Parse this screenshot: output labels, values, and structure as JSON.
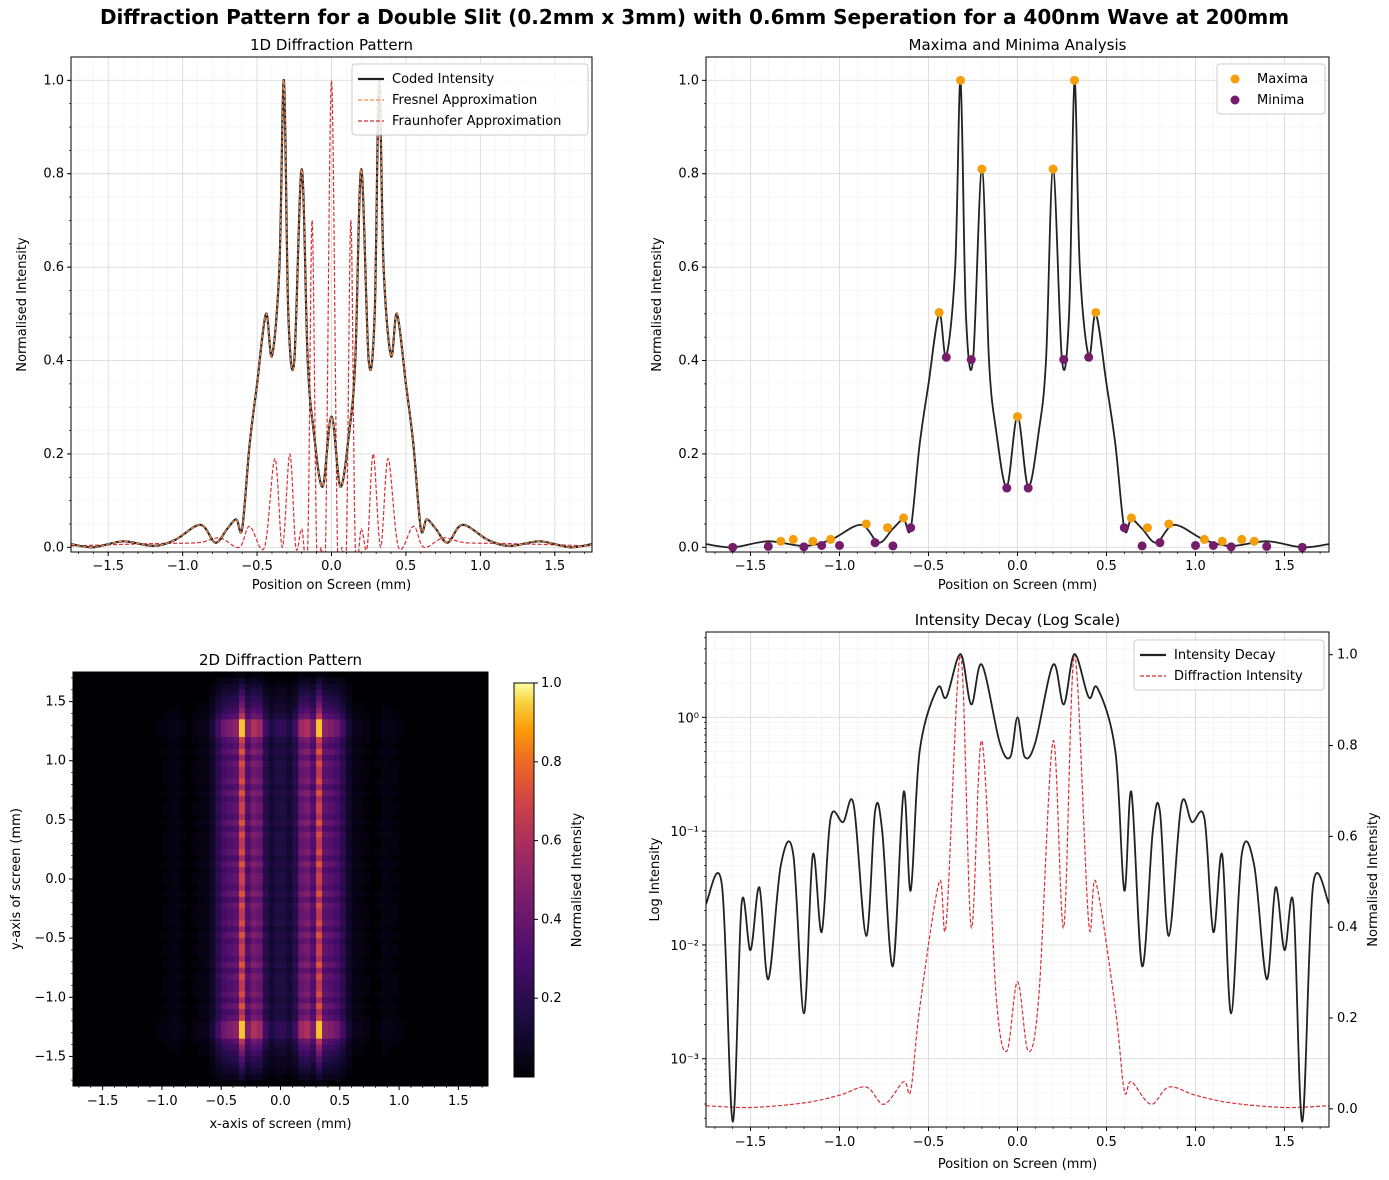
{
  "figure": {
    "title": "Diffraction Pattern for a Double Slit (0.2mm x 3mm) with 0.6mm Seperation for a 400nm Wave at 200mm"
  },
  "chart_data": [
    {
      "type": "line",
      "title": "1D Diffraction Pattern",
      "xlabel": "Position on Screen (mm)",
      "ylabel": "Normalised Intensity",
      "xlim": [
        -1.75,
        1.75
      ],
      "ylim": [
        -0.01,
        1.05
      ],
      "xticks": [
        "−1.5",
        "−1.0",
        "−0.5",
        "0.0",
        "0.5",
        "1.0",
        "1.5"
      ],
      "yticks": [
        "0.0",
        "0.2",
        "0.4",
        "0.6",
        "0.8",
        "1.0"
      ],
      "grid": true,
      "legend_position": "top-right",
      "series": [
        {
          "name": "Coded Intensity",
          "color": "#222222",
          "style": "solid",
          "x": [
            -1.75,
            -1.6,
            -1.4,
            -1.2,
            -1.05,
            -0.88,
            -0.78,
            -0.7,
            -0.64,
            -0.6,
            -0.55,
            -0.5,
            -0.44,
            -0.4,
            -0.35,
            -0.32,
            -0.29,
            -0.25,
            -0.2,
            -0.16,
            -0.12,
            -0.06,
            0.0,
            0.06,
            0.12,
            0.16,
            0.2,
            0.25,
            0.29,
            0.32,
            0.35,
            0.4,
            0.44,
            0.5,
            0.55,
            0.6,
            0.64,
            0.7,
            0.78,
            0.88,
            1.05,
            1.2,
            1.4,
            1.6,
            1.75
          ],
          "y": [
            0.007,
            0.0,
            0.013,
            0.003,
            0.016,
            0.048,
            0.01,
            0.04,
            0.06,
            0.04,
            0.22,
            0.35,
            0.5,
            0.41,
            0.6,
            1.0,
            0.5,
            0.4,
            0.81,
            0.4,
            0.25,
            0.13,
            0.28,
            0.13,
            0.25,
            0.4,
            0.81,
            0.4,
            0.5,
            1.0,
            0.6,
            0.41,
            0.5,
            0.35,
            0.22,
            0.04,
            0.06,
            0.04,
            0.01,
            0.048,
            0.016,
            0.003,
            0.013,
            0.0,
            0.007
          ]
        },
        {
          "name": "Fresnel Approximation",
          "color": "#f4894b",
          "style": "dashed",
          "x": [
            -1.75,
            -1.6,
            -1.4,
            -1.2,
            -1.05,
            -0.88,
            -0.78,
            -0.7,
            -0.64,
            -0.6,
            -0.55,
            -0.5,
            -0.44,
            -0.4,
            -0.35,
            -0.32,
            -0.29,
            -0.25,
            -0.2,
            -0.16,
            -0.12,
            -0.06,
            0.0,
            0.06,
            0.12,
            0.16,
            0.2,
            0.25,
            0.29,
            0.32,
            0.35,
            0.4,
            0.44,
            0.5,
            0.55,
            0.6,
            0.64,
            0.7,
            0.78,
            0.88,
            1.05,
            1.2,
            1.4,
            1.6,
            1.75
          ],
          "y": [
            0.007,
            0.0,
            0.013,
            0.003,
            0.016,
            0.048,
            0.01,
            0.04,
            0.06,
            0.04,
            0.22,
            0.35,
            0.5,
            0.41,
            0.6,
            1.0,
            0.5,
            0.4,
            0.81,
            0.4,
            0.25,
            0.13,
            0.28,
            0.13,
            0.25,
            0.4,
            0.81,
            0.4,
            0.5,
            1.0,
            0.6,
            0.41,
            0.5,
            0.35,
            0.22,
            0.04,
            0.06,
            0.04,
            0.01,
            0.048,
            0.016,
            0.003,
            0.013,
            0.0,
            0.007
          ]
        },
        {
          "name": "Fraunhofer Approximation",
          "color": "#d62f36",
          "style": "dashed",
          "x": [
            -1.75,
            -1.2,
            -0.9,
            -0.75,
            -0.62,
            -0.55,
            -0.45,
            -0.38,
            -0.33,
            -0.28,
            -0.24,
            -0.2,
            -0.16,
            -0.13,
            -0.1,
            -0.07,
            -0.04,
            0.0,
            0.04,
            0.07,
            0.1,
            0.13,
            0.16,
            0.2,
            0.24,
            0.28,
            0.33,
            0.38,
            0.45,
            0.55,
            0.62,
            0.75,
            0.9,
            1.2,
            1.75
          ],
          "y": [
            0.003,
            0.008,
            0.01,
            0.02,
            0.0,
            0.045,
            0.0,
            0.19,
            0.0,
            0.2,
            0.0,
            0.04,
            0.0,
            0.7,
            0.0,
            0.0,
            0.0,
            1.0,
            0.0,
            0.0,
            0.0,
            0.7,
            0.0,
            0.04,
            0.0,
            0.2,
            0.0,
            0.19,
            0.0,
            0.045,
            0.0,
            0.02,
            0.01,
            0.008,
            0.003
          ]
        }
      ]
    },
    {
      "type": "line",
      "title": "Maxima and Minima Analysis",
      "xlabel": "Position on Screen (mm)",
      "ylabel": "Normalised Intensity",
      "xlim": [
        -1.75,
        1.75
      ],
      "ylim": [
        -0.01,
        1.05
      ],
      "xticks": [
        "−1.5",
        "−1.0",
        "−0.5",
        "0.0",
        "0.5",
        "1.0",
        "1.5"
      ],
      "yticks": [
        "0.0",
        "0.2",
        "0.4",
        "0.6",
        "0.8",
        "1.0"
      ],
      "grid": true,
      "legend_position": "top-right",
      "series": [
        {
          "name": "Maxima",
          "color": "#f59e0b",
          "x": [
            -1.33,
            -1.26,
            -1.15,
            -1.05,
            -0.85,
            -0.73,
            -0.64,
            -0.44,
            -0.32,
            -0.2,
            0.0,
            0.2,
            0.32,
            0.44,
            0.64,
            0.73,
            0.85,
            1.05,
            1.15,
            1.26,
            1.33
          ],
          "y": [
            0.013,
            0.017,
            0.013,
            0.017,
            0.05,
            0.042,
            0.063,
            0.503,
            1.0,
            0.81,
            0.28,
            0.81,
            1.0,
            0.503,
            0.063,
            0.042,
            0.05,
            0.017,
            0.013,
            0.017,
            0.013
          ]
        },
        {
          "name": "Minima",
          "color": "#751c6b",
          "x": [
            -1.6,
            -1.4,
            -1.2,
            -1.1,
            -1.0,
            -0.8,
            -0.7,
            -0.6,
            -0.4,
            -0.26,
            -0.06,
            0.06,
            0.26,
            0.4,
            0.6,
            0.7,
            0.8,
            1.0,
            1.1,
            1.2,
            1.4,
            1.6
          ],
          "y": [
            0.0,
            0.002,
            0.001,
            0.004,
            0.004,
            0.01,
            0.003,
            0.042,
            0.407,
            0.402,
            0.127,
            0.127,
            0.402,
            0.407,
            0.042,
            0.003,
            0.01,
            0.004,
            0.004,
            0.001,
            0.002,
            0.0
          ]
        }
      ]
    },
    {
      "type": "heatmap",
      "title": "2D Diffraction Pattern",
      "xlabel": "x-axis of screen (mm)",
      "ylabel": "y-axis of screen (mm)",
      "xlim": [
        -1.75,
        1.75
      ],
      "ylim": [
        -1.75,
        1.75
      ],
      "xticks": [
        "−1.5",
        "−1.0",
        "−0.5",
        "0.0",
        "0.5",
        "1.0",
        "1.5"
      ],
      "yticks": [
        "1.5",
        "1.0",
        "0.5",
        "0.0",
        "−0.5",
        "−1.0",
        "−1.5"
      ],
      "colormap": "inferno",
      "colorbar": {
        "label": "Normalised Intensity",
        "ticks": [
          "1.0",
          "0.8",
          "0.6",
          "0.4",
          "0.2"
        ],
        "range": [
          0.0,
          1.0
        ]
      }
    },
    {
      "type": "line",
      "title": "Intensity Decay (Log Scale)",
      "xlabel": "Position on Screen (mm)",
      "ylabel": "Log Intensity",
      "ylabel_right": "Normalised Intensity",
      "xlim": [
        -1.75,
        1.75
      ],
      "yscale": "log",
      "xticks": [
        "−1.5",
        "−1.0",
        "−0.5",
        "0.0",
        "0.5",
        "1.0",
        "1.5"
      ],
      "yticks_left": [
        "10⁰",
        "10⁻¹",
        "10⁻²",
        "10⁻³"
      ],
      "yticks_right": [
        "1.0",
        "0.8",
        "0.6",
        "0.4",
        "0.2",
        "0.0"
      ],
      "grid": true,
      "legend_position": "top-right",
      "series": [
        {
          "name": "Intensity Decay",
          "color": "#222222",
          "style": "solid",
          "x": [
            -1.75,
            -1.66,
            -1.6,
            -1.55,
            -1.5,
            -1.45,
            -1.4,
            -1.33,
            -1.26,
            -1.2,
            -1.15,
            -1.1,
            -1.05,
            -0.98,
            -0.92,
            -0.85,
            -0.8,
            -0.76,
            -0.7,
            -0.64,
            -0.6,
            -0.55,
            -0.45,
            -0.4,
            -0.32,
            -0.26,
            -0.2,
            -0.1,
            -0.04,
            0.0,
            0.04,
            0.1,
            0.2,
            0.26,
            0.32,
            0.4,
            0.45,
            0.55,
            0.6,
            0.64,
            0.7,
            0.76,
            0.8,
            0.85,
            0.92,
            0.98,
            1.05,
            1.1,
            1.15,
            1.2,
            1.26,
            1.33,
            1.4,
            1.45,
            1.5,
            1.55,
            1.6,
            1.66,
            1.75
          ],
          "y": [
            0.023,
            0.033,
            0.00028,
            0.023,
            0.009,
            0.032,
            0.005,
            0.05,
            0.063,
            0.0025,
            0.062,
            0.013,
            0.13,
            0.12,
            0.17,
            0.012,
            0.15,
            0.1,
            0.0065,
            0.22,
            0.03,
            0.5,
            1.8,
            1.5,
            3.6,
            1.3,
            2.9,
            0.6,
            0.45,
            1.0,
            0.45,
            0.6,
            2.9,
            1.3,
            3.6,
            1.5,
            1.8,
            0.5,
            0.03,
            0.22,
            0.0065,
            0.1,
            0.15,
            0.012,
            0.17,
            0.12,
            0.13,
            0.013,
            0.062,
            0.0025,
            0.063,
            0.05,
            0.005,
            0.032,
            0.009,
            0.023,
            0.00028,
            0.033,
            0.023
          ]
        },
        {
          "name": "Diffraction Intensity",
          "color": "#d62f36",
          "style": "dashed",
          "x": [
            -1.75,
            -1.5,
            -1.2,
            -1.0,
            -0.85,
            -0.75,
            -0.64,
            -0.6,
            -0.55,
            -0.44,
            -0.4,
            -0.32,
            -0.26,
            -0.2,
            -0.12,
            -0.06,
            0.0,
            0.06,
            0.12,
            0.2,
            0.26,
            0.32,
            0.4,
            0.44,
            0.55,
            0.6,
            0.64,
            0.75,
            0.85,
            1.0,
            1.2,
            1.5,
            1.75
          ],
          "y": [
            0.007,
            0.003,
            0.013,
            0.03,
            0.048,
            0.01,
            0.06,
            0.04,
            0.22,
            0.5,
            0.41,
            1.0,
            0.4,
            0.81,
            0.25,
            0.127,
            0.28,
            0.127,
            0.25,
            0.81,
            0.4,
            1.0,
            0.41,
            0.5,
            0.22,
            0.04,
            0.06,
            0.01,
            0.048,
            0.03,
            0.013,
            0.003,
            0.007
          ]
        }
      ]
    }
  ]
}
